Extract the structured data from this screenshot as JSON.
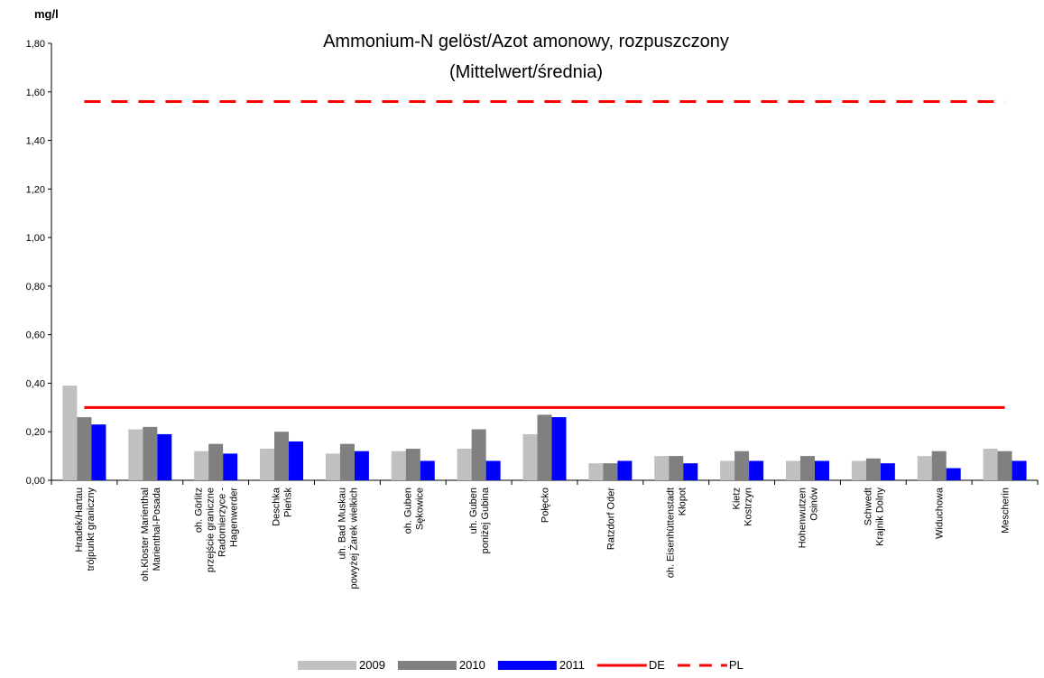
{
  "chart_data": {
    "type": "bar",
    "title": "Ammonium-N gelöst/Azot amonowy, rozpuszczony",
    "subtitle": "(Mittelwert/średnia)",
    "y_label": "mg/l",
    "categories": [
      "Hradek/Hartau\ntrójpunkt graniczny",
      "oh.Kloster Marienthal\nMarienthal-Posada",
      "oh. Görlitz\nprzejście graniczne\nRadomierzyce -\nHagenwerder",
      "Deschka\nPieńsk",
      "uh. Bad Muskau\npowyżej Żarek wielkich",
      "oh. Guben\nSękowice",
      "uh. Guben\nponiżej Gubina",
      "Połęcko",
      "Ratzdorf Oder",
      "oh. Eisenhüttenstadt\nKłopot",
      "Kietz\nKostrzyn",
      "Hohenwutzen\nOsinów",
      "Schwedt\nKrajnik Dolny",
      "Widuchowa",
      "Mescherin"
    ],
    "series": [
      {
        "name": "2009",
        "color": "#c0c0c0",
        "values": [
          0.39,
          0.21,
          0.12,
          0.13,
          0.11,
          0.12,
          0.13,
          0.19,
          0.07,
          0.1,
          0.08,
          0.08,
          0.08,
          0.1,
          0.13
        ]
      },
      {
        "name": "2010",
        "color": "#808080",
        "values": [
          0.26,
          0.22,
          0.15,
          0.2,
          0.15,
          0.13,
          0.21,
          0.27,
          0.07,
          0.1,
          0.12,
          0.1,
          0.09,
          0.12,
          0.12
        ]
      },
      {
        "name": "2011",
        "color": "#0000ff",
        "values": [
          0.23,
          0.19,
          0.11,
          0.16,
          0.12,
          0.08,
          0.08,
          0.26,
          0.08,
          0.07,
          0.08,
          0.08,
          0.07,
          0.05,
          0.08
        ]
      },
      {
        "name": "DE",
        "color": "#ff0000",
        "type": "line",
        "dashed": false,
        "values": [
          0.3,
          0.3,
          0.3,
          0.3,
          0.3,
          0.3,
          0.3,
          0.3,
          0.3,
          0.3,
          0.3,
          0.3,
          0.3,
          0.3,
          0.3
        ]
      },
      {
        "name": "PL",
        "color": "#ff0000",
        "type": "line",
        "dashed": true,
        "values": [
          1.56,
          1.56,
          1.56,
          1.56,
          1.56,
          1.56,
          1.56,
          1.56,
          1.56,
          1.56,
          1.56,
          1.56,
          1.56,
          1.56,
          1.56
        ]
      }
    ],
    "ylim": [
      0,
      1.8
    ],
    "yticks": [
      {
        "value": 0,
        "label": "0,00"
      },
      {
        "value": 0.2,
        "label": "0,20"
      },
      {
        "value": 0.4,
        "label": "0,40"
      },
      {
        "value": 0.6,
        "label": "0,60"
      },
      {
        "value": 0.8,
        "label": "0,80"
      },
      {
        "value": 1.0,
        "label": "1,00"
      },
      {
        "value": 1.2,
        "label": "1,20"
      },
      {
        "value": 1.4,
        "label": "1,40"
      },
      {
        "value": 1.6,
        "label": "1,60"
      },
      {
        "value": 1.8,
        "label": "1,80"
      }
    ],
    "grid": false,
    "legend": "bottom"
  }
}
